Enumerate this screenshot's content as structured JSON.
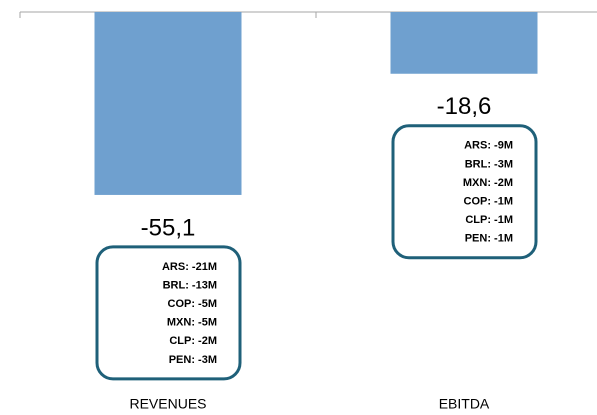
{
  "chart_data": {
    "type": "bar",
    "categories": [
      "REVENUES",
      "EBITDA"
    ],
    "values": [
      -55.1,
      -18.6
    ],
    "value_labels": [
      "-55,1",
      "-18,6"
    ],
    "color": "#6fa0cf",
    "ylim": [
      -100,
      0
    ],
    "breakdowns": [
      [
        "ARS: -21M",
        "BRL: -13M",
        "COP: -5M",
        "MXN: -5M",
        "CLP: -2M",
        "PEN: -3M"
      ],
      [
        "ARS: -9M",
        "BRL: -3M",
        "MXN: -2M",
        "COP: -1M",
        "CLP: -1M",
        "PEN: -1M"
      ]
    ]
  }
}
